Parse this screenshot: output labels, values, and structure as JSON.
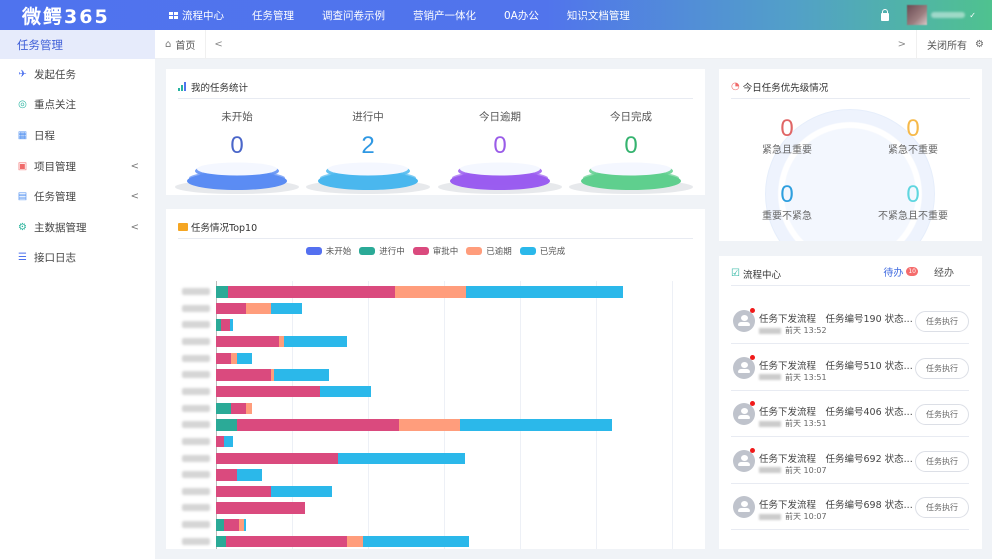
{
  "app": {
    "logo": "微鳄365"
  },
  "topnav": {
    "items": [
      {
        "label": "流程中心",
        "icon": "grid-icon"
      },
      {
        "label": "任务管理"
      },
      {
        "label": "调查问卷示例"
      },
      {
        "label": "营销产一体化"
      },
      {
        "label": "0A办公"
      },
      {
        "label": "知识文档管理"
      }
    ],
    "user_caret": "✓"
  },
  "sidebar": {
    "header": "任务管理",
    "items": [
      {
        "label": "发起任务",
        "icon": "paper-plane-icon",
        "color": "#4f73ee",
        "glyph": "✈"
      },
      {
        "label": "重点关注",
        "icon": "target-icon",
        "color": "#27b3a0",
        "glyph": "◎"
      },
      {
        "label": "日程",
        "icon": "calendar-grid-icon",
        "color": "#4f8ff0",
        "glyph": "▦"
      },
      {
        "label": "项目管理",
        "icon": "presentation-icon",
        "color": "#f06a6a",
        "glyph": "▣",
        "expandable": true
      },
      {
        "label": "任务管理",
        "icon": "task-board-icon",
        "color": "#4f8ff0",
        "glyph": "▤",
        "expandable": true
      },
      {
        "label": "主数据管理",
        "icon": "share-nodes-icon",
        "color": "#27b39b",
        "glyph": "⚙",
        "expandable": true
      },
      {
        "label": "接口日志",
        "icon": "sliders-icon",
        "color": "#4f73ee",
        "glyph": "☰"
      }
    ],
    "arrow": "<"
  },
  "tabs": {
    "home": "首页",
    "prev": "<",
    "next": ">",
    "close_all": "关闭所有"
  },
  "stats": {
    "title": "我的任务统计",
    "items": [
      {
        "label": "未开始",
        "value": "0",
        "color": "#4a66c9",
        "base": "#5b8cf3"
      },
      {
        "label": "进行中",
        "value": "2",
        "color": "#2f98e3",
        "base": "#4ab7ee"
      },
      {
        "label": "今日逾期",
        "value": "0",
        "color": "#9a5ce8",
        "base": "#9a5df0"
      },
      {
        "label": "今日完成",
        "value": "0",
        "color": "#35b36f",
        "base": "#5fcf8e"
      }
    ]
  },
  "priority": {
    "title": "今日任务优先级情况",
    "items": [
      {
        "label": "紧急且重要",
        "value": "0",
        "color": "#e06666"
      },
      {
        "label": "紧急不重要",
        "value": "0",
        "color": "#f6b94a"
      },
      {
        "label": "重要不紧急",
        "value": "0",
        "color": "#2e9fde"
      },
      {
        "label": "不紧急且不重要",
        "value": "0",
        "color": "#5fd6df"
      }
    ]
  },
  "chart_data": {
    "type": "bar",
    "orientation": "horizontal-stacked",
    "title": "任务情况Top10",
    "legend": [
      "未开始",
      "进行中",
      "审批中",
      "已逾期",
      "已完成"
    ],
    "colors": [
      "#5470f0",
      "#2baa97",
      "#da4a7e",
      "#ff9d7c",
      "#2bb8ea"
    ],
    "legend_position": "top",
    "grid": true,
    "xlim": [
      0,
      6
    ],
    "categories_note": "y-axis labels blurred",
    "series": [
      {
        "name": "未开始",
        "values": [
          0,
          0,
          0,
          0,
          0,
          0,
          0,
          0,
          0,
          0,
          0,
          0,
          0,
          0,
          0,
          0
        ]
      },
      {
        "name": "进行中",
        "values": [
          0.16,
          0,
          0.06,
          0,
          0,
          0,
          0,
          0.2,
          0.27,
          0,
          0,
          0,
          0,
          0,
          0.1,
          0.13
        ]
      },
      {
        "name": "审批中",
        "values": [
          2.2,
          0.4,
          0.13,
          0.83,
          0.2,
          0.73,
          1.37,
          0.2,
          2.14,
          0.1,
          1.6,
          0.27,
          0.73,
          1.17,
          0.2,
          1.6
        ]
      },
      {
        "name": "已逾期",
        "values": [
          0.93,
          0.33,
          0,
          0.07,
          0.07,
          0.03,
          0,
          0.07,
          0.8,
          0,
          0,
          0,
          0,
          0,
          0.07,
          0.2
        ]
      },
      {
        "name": "已完成",
        "values": [
          2.07,
          0.4,
          0.03,
          0.83,
          0.2,
          0.73,
          0.67,
          0,
          2,
          0.13,
          1.67,
          0.33,
          0.8,
          0,
          0.03,
          1.4
        ]
      }
    ]
  },
  "flow": {
    "title": "流程中心",
    "tab_todo": "待办",
    "todo_badge": "10",
    "tab_done": "经办",
    "action_label": "任务执行",
    "items": [
      {
        "title": "任务下发流程　任务编号190 状态...",
        "time": "前天 13:52",
        "unread": true
      },
      {
        "title": "任务下发流程　任务编号510 状态...",
        "time": "前天 13:51",
        "unread": true
      },
      {
        "title": "任务下发流程　任务编号406 状态...",
        "time": "前天 13:51",
        "unread": true
      },
      {
        "title": "任务下发流程　任务编号692 状态...",
        "time": "前天 10:07",
        "unread": true
      },
      {
        "title": "任务下发流程　任务编号698 状态...",
        "time": "前天 10:07",
        "unread": false
      }
    ]
  }
}
